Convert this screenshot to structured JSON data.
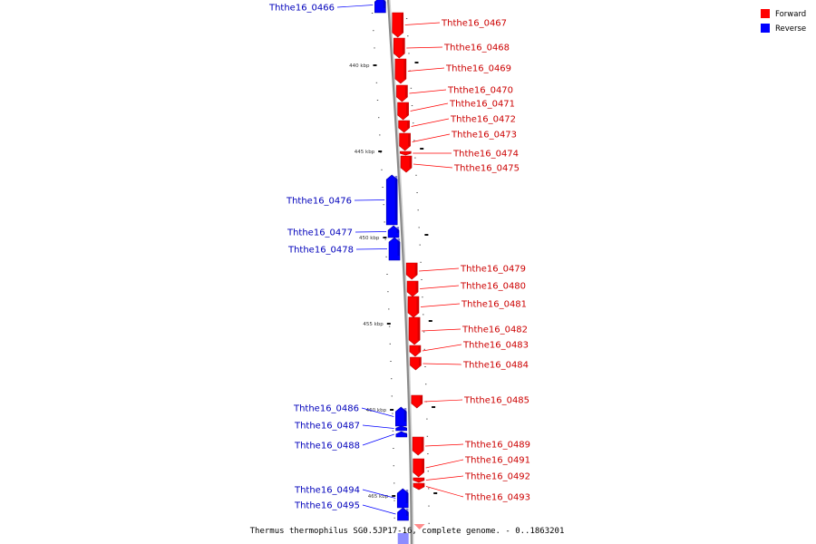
{
  "caption": "Thermus thermophilus SG0.5JP17-16, complete genome. - 0..1863201",
  "legend": [
    {
      "label": "Forward",
      "color": "#ff0000"
    },
    {
      "label": "Reverse",
      "color": "#0000ff"
    }
  ],
  "strand_colors": {
    "forward": "#ff0000",
    "reverse": "#0000ff",
    "forward_shade": "#b80000",
    "reverse_shade": "#0000a8"
  },
  "ticks": [
    "440 kbp",
    "445 kbp",
    "450 kbp",
    "455 kbp",
    "460 kbp",
    "465 kbp"
  ],
  "genes": [
    {
      "name": "Ththe16_0466",
      "strand": "reverse"
    },
    {
      "name": "Ththe16_0467",
      "strand": "forward"
    },
    {
      "name": "Ththe16_0468",
      "strand": "forward"
    },
    {
      "name": "Ththe16_0469",
      "strand": "forward"
    },
    {
      "name": "Ththe16_0470",
      "strand": "forward"
    },
    {
      "name": "Ththe16_0471",
      "strand": "forward"
    },
    {
      "name": "Ththe16_0472",
      "strand": "forward"
    },
    {
      "name": "Ththe16_0473",
      "strand": "forward"
    },
    {
      "name": "Ththe16_0474",
      "strand": "forward"
    },
    {
      "name": "Ththe16_0475",
      "strand": "forward"
    },
    {
      "name": "Ththe16_0476",
      "strand": "reverse"
    },
    {
      "name": "Ththe16_0477",
      "strand": "reverse"
    },
    {
      "name": "Ththe16_0478",
      "strand": "reverse"
    },
    {
      "name": "Ththe16_0479",
      "strand": "forward"
    },
    {
      "name": "Ththe16_0480",
      "strand": "forward"
    },
    {
      "name": "Ththe16_0481",
      "strand": "forward"
    },
    {
      "name": "Ththe16_0482",
      "strand": "forward"
    },
    {
      "name": "Ththe16_0483",
      "strand": "forward"
    },
    {
      "name": "Ththe16_0484",
      "strand": "forward"
    },
    {
      "name": "Ththe16_0485",
      "strand": "forward"
    },
    {
      "name": "Ththe16_0486",
      "strand": "reverse"
    },
    {
      "name": "Ththe16_0487",
      "strand": "reverse"
    },
    {
      "name": "Ththe16_0488",
      "strand": "reverse"
    },
    {
      "name": "Ththe16_0489",
      "strand": "forward"
    },
    {
      "name": "Ththe16_0491",
      "strand": "forward"
    },
    {
      "name": "Ththe16_0492",
      "strand": "forward"
    },
    {
      "name": "Ththe16_0493",
      "strand": "forward"
    },
    {
      "name": "Ththe16_0494",
      "strand": "reverse"
    },
    {
      "name": "Ththe16_0495",
      "strand": "reverse"
    }
  ]
}
